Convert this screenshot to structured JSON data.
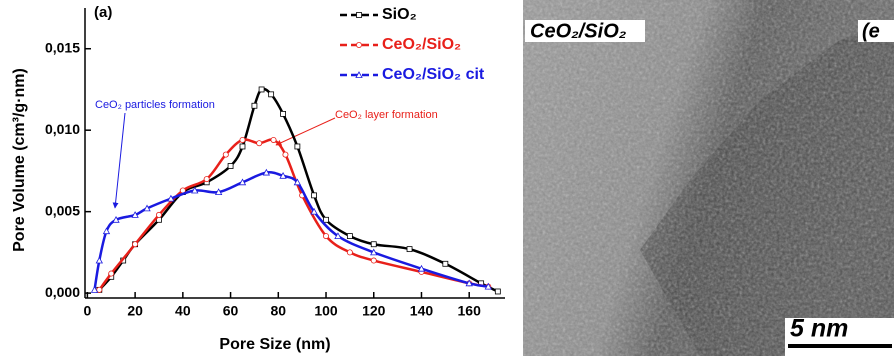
{
  "chart_data": {
    "type": "line",
    "panel_label": "(a)",
    "x_label": "Pore Size (nm)",
    "y_label": "Pore Volume (cm³/g·nm)",
    "xlim": [
      -1,
      175
    ],
    "xticks": [
      0,
      20,
      40,
      60,
      80,
      100,
      120,
      140,
      160
    ],
    "ylim": [
      -0.0003,
      0.0175
    ],
    "yticks": [
      {
        "value": 0,
        "label": "0,000"
      },
      {
        "value": 0.005,
        "label": "0,005"
      },
      {
        "value": 0.01,
        "label": "0,010"
      },
      {
        "value": 0.015,
        "label": "0,015"
      }
    ],
    "legend": "top-right",
    "series": [
      {
        "name": "SiO₂",
        "color": "#000000",
        "marker": "square",
        "x": [
          5,
          10,
          15,
          20,
          30,
          40,
          50,
          60,
          65,
          70,
          73,
          77,
          82,
          88,
          95,
          100,
          110,
          120,
          135,
          150,
          165,
          172
        ],
        "values": [
          0.0002,
          0.001,
          0.002,
          0.003,
          0.0045,
          0.0062,
          0.0068,
          0.0078,
          0.009,
          0.0115,
          0.0125,
          0.0122,
          0.011,
          0.009,
          0.006,
          0.0045,
          0.0035,
          0.003,
          0.0027,
          0.0018,
          0.0006,
          0.0001
        ]
      },
      {
        "name": "CeO₂/SiO₂",
        "color": "#e8201a",
        "marker": "circle",
        "x": [
          5,
          10,
          20,
          30,
          40,
          50,
          58,
          65,
          72,
          78,
          83,
          90,
          100,
          110,
          120,
          140,
          160,
          168
        ],
        "values": [
          0.0002,
          0.0012,
          0.003,
          0.0048,
          0.0063,
          0.007,
          0.0085,
          0.0094,
          0.0092,
          0.0094,
          0.0085,
          0.006,
          0.0035,
          0.0025,
          0.002,
          0.0013,
          0.0006,
          0.0004
        ]
      },
      {
        "name": "CeO₂/SiO₂ cit",
        "color": "#1a1ae0",
        "marker": "triangle",
        "x": [
          3,
          5,
          8,
          12,
          20,
          25,
          35,
          45,
          55,
          65,
          75,
          82,
          88,
          95,
          105,
          120,
          140,
          160,
          168
        ],
        "values": [
          0.0002,
          0.002,
          0.0038,
          0.0045,
          0.0048,
          0.0052,
          0.0058,
          0.0063,
          0.0062,
          0.0068,
          0.0074,
          0.0072,
          0.0068,
          0.005,
          0.0035,
          0.0025,
          0.0015,
          0.0006,
          0.0004
        ]
      }
    ],
    "annotations": [
      {
        "text": "CeO₂ particles formation",
        "color": "#1a1ae0"
      },
      {
        "text": "CeO₂ layer formation",
        "color": "#e8201a"
      }
    ]
  },
  "image": {
    "label": "CeO₂/SiO₂",
    "panel_label": "(e",
    "scale_bar": "5 nm"
  }
}
